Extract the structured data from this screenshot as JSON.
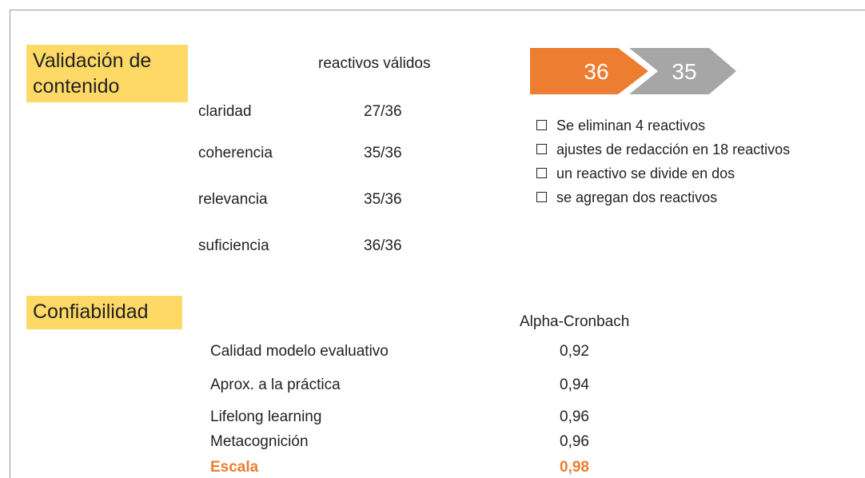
{
  "content_validation": {
    "title": "Validación de contenido",
    "column_header": "reactivos válidos",
    "rows": [
      {
        "label": "claridad",
        "value": "27/36"
      },
      {
        "label": "coherencia",
        "value": "35/36"
      },
      {
        "label": "relevancia",
        "value": "35/36"
      },
      {
        "label": "suficiencia",
        "value": "36/36"
      }
    ]
  },
  "changes": {
    "from": "36",
    "to": "35",
    "items": [
      "Se eliminan 4 reactivos",
      "ajustes de redacción en 18 reactivos",
      "un reactivo se divide en dos",
      "se agregan dos reactivos"
    ]
  },
  "reliability": {
    "title": "Confiabilidad",
    "column_header": "Alpha-Cronbach",
    "rows": [
      {
        "label": "Calidad modelo evaluativo",
        "value": "0,92"
      },
      {
        "label": "Aprox. a la práctica",
        "value": "0,94"
      },
      {
        "label": "Lifelong learning",
        "value": "0,96"
      },
      {
        "label": "Metacognición",
        "value": "0,96"
      },
      {
        "label": "Escala",
        "value": "0,98"
      }
    ]
  }
}
